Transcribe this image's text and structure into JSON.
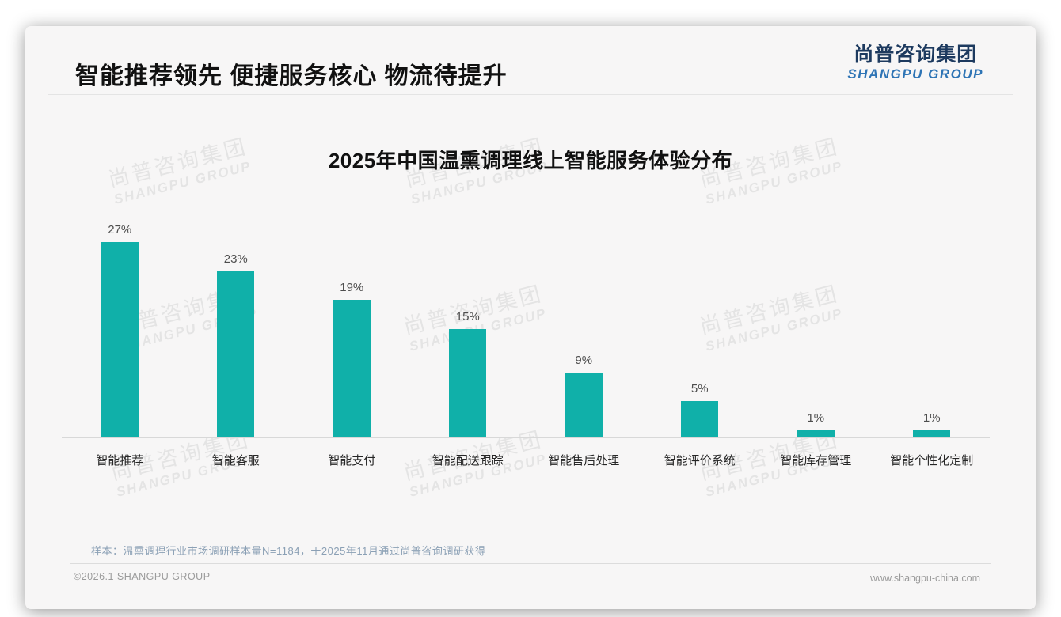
{
  "header": {
    "title": "智能推荐领先 便捷服务核心 物流待提升",
    "logo": {
      "cn": "尚普咨询集团",
      "en": "SHANGPU GROUP"
    }
  },
  "watermark": {
    "line1": "尚普咨询集团",
    "line2": "SHANGPU GROUP"
  },
  "chart_data": {
    "type": "bar",
    "title": "2025年中国温熏调理线上智能服务体验分布",
    "categories": [
      "智能推荐",
      "智能客服",
      "智能支付",
      "智能配送跟踪",
      "智能售后处理",
      "智能评价系统",
      "智能库存管理",
      "智能个性化定制"
    ],
    "values": [
      27,
      23,
      19,
      15,
      9,
      5,
      1,
      1
    ],
    "unit": "%",
    "data_labels": true,
    "bar_color": "#10b0a9",
    "ylim": [
      0,
      28
    ],
    "grid": false,
    "legend": false,
    "xlabel": "",
    "ylabel": ""
  },
  "note": "样本：温熏调理行业市场调研样本量N=1184，于2025年11月通过尚普咨询调研获得",
  "footer": {
    "left": "©2026.1 SHANGPU GROUP",
    "right": "www.shangpu-china.com"
  },
  "colors": {
    "accent_teal": "#10b0a9",
    "logo_cn": "#1d3a5f",
    "logo_en": "#2e74b5",
    "note_text": "#8ba0b5",
    "card_bg": "#f7f6f6"
  }
}
